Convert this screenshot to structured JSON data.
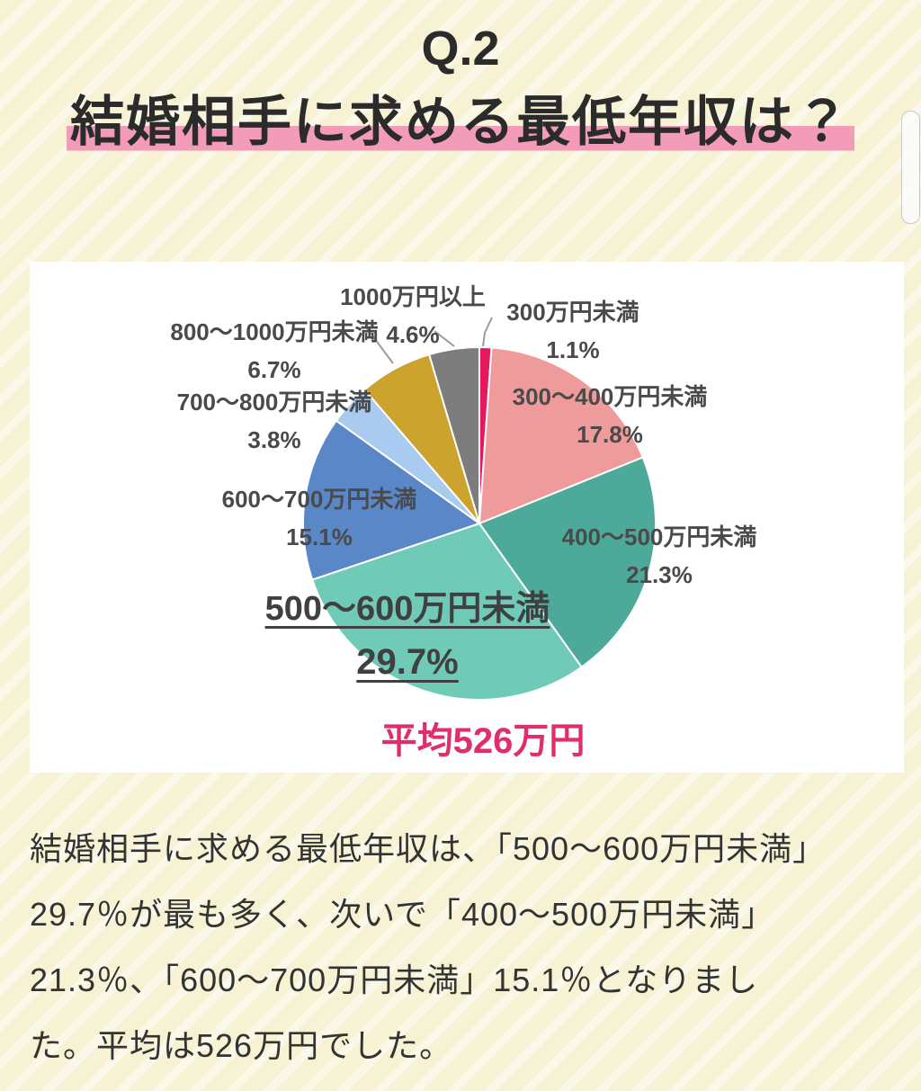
{
  "header": {
    "question_number": "Q.2",
    "title": "結婚相手に求める最低年収は？",
    "highlight_color": "#f29cba"
  },
  "chart_data": {
    "type": "pie",
    "title": "結婚相手に求める最低年収",
    "unit": "%",
    "start_angle_deg": 0,
    "clockwise": true,
    "slices": [
      {
        "label": "300万円未満",
        "value": 1.1,
        "pct": "1.1%",
        "color": "#e6195f"
      },
      {
        "label": "300〜400万円未満",
        "value": 17.8,
        "pct": "17.8%",
        "color": "#f09b9b"
      },
      {
        "label": "400〜500万円未満",
        "value": 21.3,
        "pct": "21.3%",
        "color": "#4da99a"
      },
      {
        "label": "500〜600万円未満",
        "value": 29.7,
        "pct": "29.7%",
        "color": "#6fcbb8"
      },
      {
        "label": "600〜700万円未満",
        "value": 15.1,
        "pct": "15.1%",
        "color": "#5a87c8"
      },
      {
        "label": "700〜800万円未満",
        "value": 3.8,
        "pct": "3.8%",
        "color": "#a9cbf0"
      },
      {
        "label": "800〜1000万円未満",
        "value": 6.7,
        "pct": "6.7%",
        "color": "#cba32d"
      },
      {
        "label": "1000万円以上",
        "value": 4.6,
        "pct": "4.6%",
        "color": "#7d7d7d"
      }
    ],
    "emphasized_slice": "500〜600万円未満",
    "average_label": "平均526万円",
    "average_color": "#e02f68"
  },
  "body": {
    "lines": [
      "結婚相手に求める最低年収は、「500〜600万円未満」",
      "29.7％が最も多く、次いで「400〜500万円未満」",
      "21.3％、「600〜700万円未満」15.1％となりまし",
      "た。平均は526万円でした。"
    ]
  }
}
